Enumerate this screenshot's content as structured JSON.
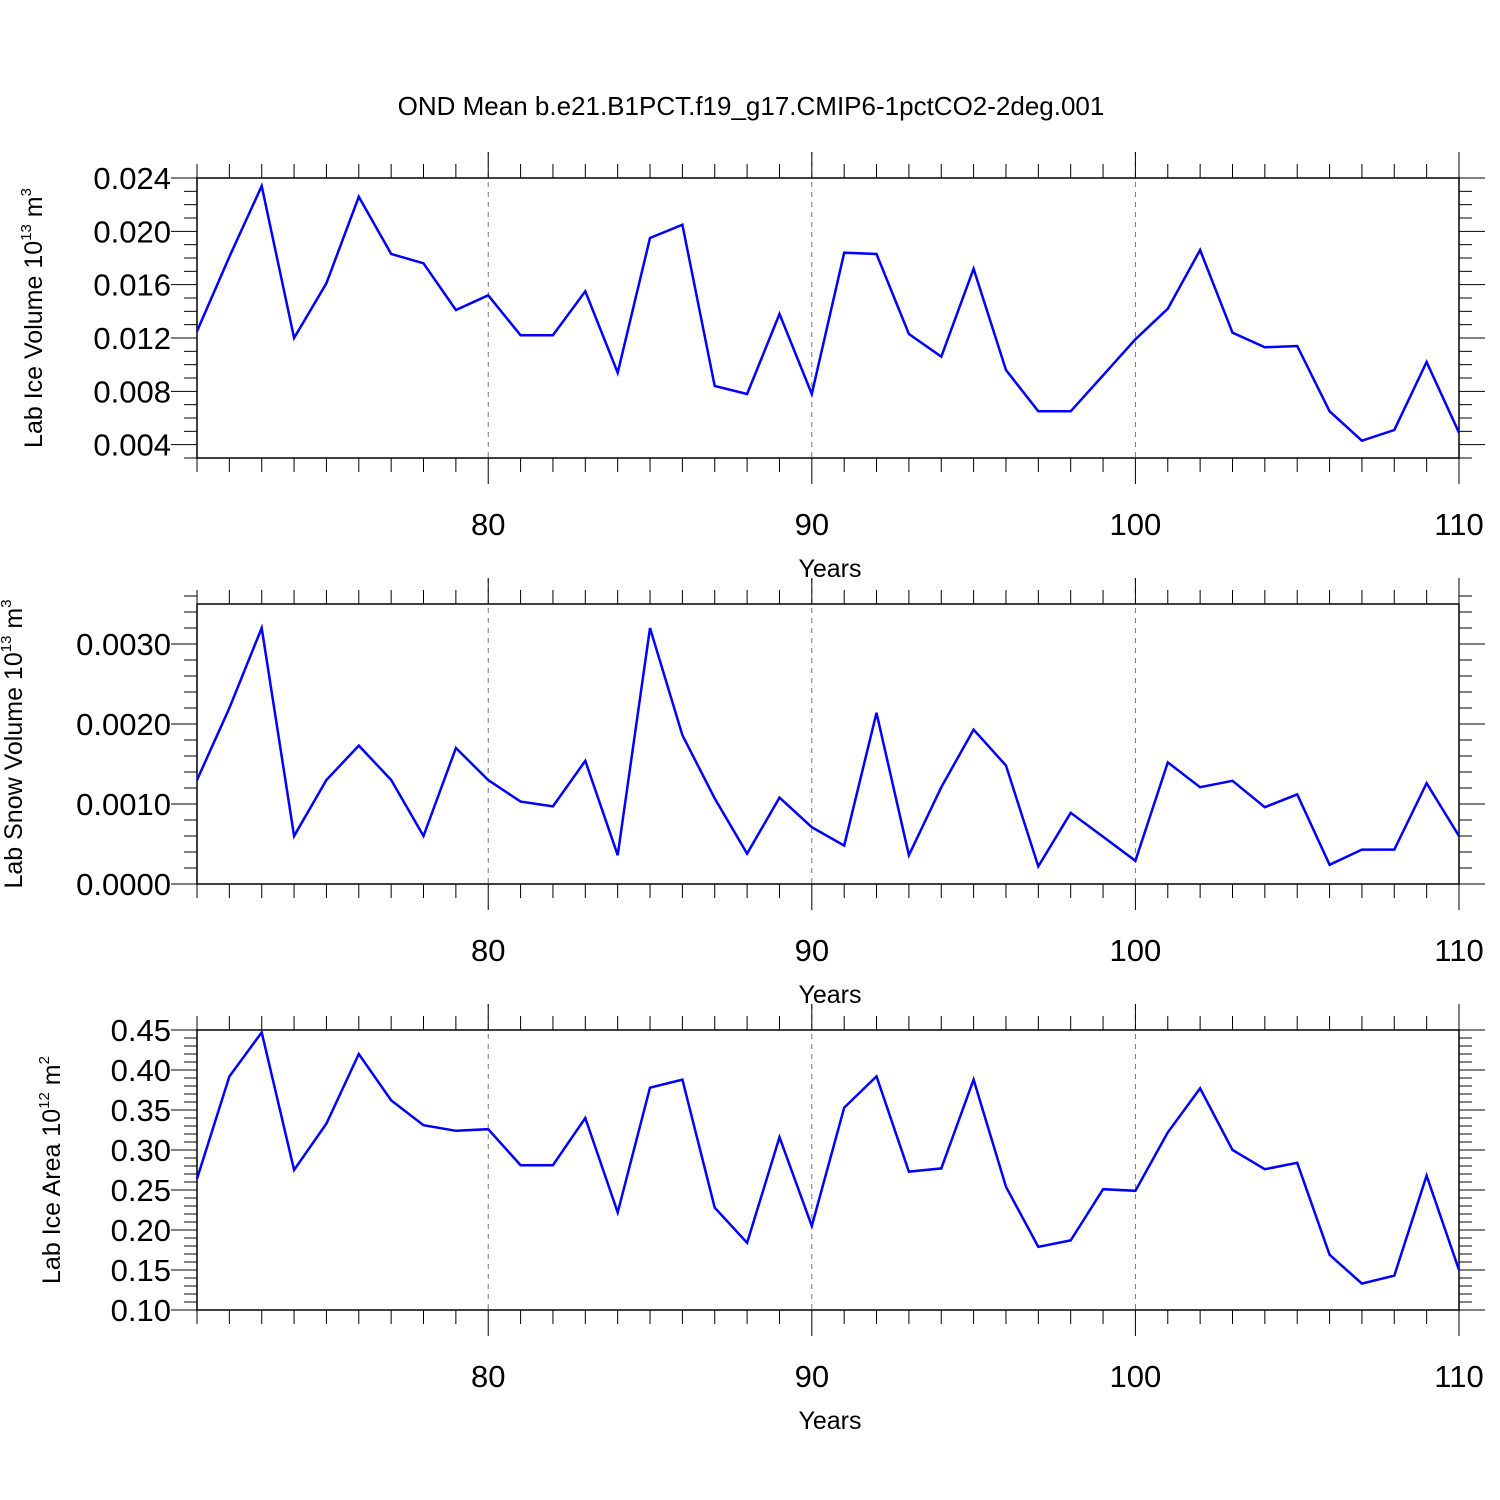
{
  "title": "OND Mean b.e21.B1PCT.f19_g17.CMIP6-1pctCO2-2deg.001",
  "chart_data": [
    {
      "type": "line",
      "title": "",
      "xlabel": "Years",
      "ylabel": {
        "base": "Lab Ice Volume 10",
        "exp": "13",
        "unit": " m",
        "unit_exp": "3"
      },
      "xlim": [
        71,
        110
      ],
      "ylim": [
        0.003,
        0.024
      ],
      "xticks": [
        80,
        90,
        100,
        110
      ],
      "xtick_labels": [
        "80",
        "90",
        "100",
        "110"
      ],
      "yticks": [
        0.004,
        0.008,
        0.012,
        0.016,
        0.02,
        0.024
      ],
      "ytick_labels": [
        "0.004",
        "0.008",
        "0.012",
        "0.016",
        "0.020",
        "0.024"
      ],
      "yminor_step": 0.001,
      "xgrid_dashed": [
        80,
        90,
        100
      ],
      "x": [
        71,
        72,
        73,
        74,
        75,
        76,
        77,
        78,
        79,
        80,
        81,
        82,
        83,
        84,
        85,
        86,
        87,
        88,
        89,
        90,
        91,
        92,
        93,
        94,
        95,
        96,
        97,
        98,
        99,
        100,
        101,
        102,
        103,
        104,
        105,
        106,
        107,
        108,
        109,
        110
      ],
      "series": [
        {
          "color": "#0000ff",
          "values": [
            0.0125,
            0.0181,
            0.0234,
            0.012,
            0.0161,
            0.0226,
            0.0183,
            0.0176,
            0.0141,
            0.0152,
            0.0122,
            0.0122,
            0.0155,
            0.0094,
            0.0195,
            0.0205,
            0.0084,
            0.0078,
            0.0138,
            0.0078,
            0.0184,
            0.0183,
            0.0123,
            0.0106,
            0.0172,
            0.0096,
            0.0065,
            0.0065,
            0.0092,
            0.0119,
            0.0142,
            0.0186,
            0.0124,
            0.0113,
            0.0114,
            0.0065,
            0.0043,
            0.0051,
            0.0102,
            0.0049
          ]
        }
      ]
    },
    {
      "type": "line",
      "title": "",
      "xlabel": "Years",
      "ylabel": {
        "base": "Lab Snow Volume 10",
        "exp": "13",
        "unit": " m",
        "unit_exp": "3"
      },
      "xlim": [
        71,
        110
      ],
      "ylim": [
        0.0,
        0.0035
      ],
      "xticks": [
        80,
        90,
        100,
        110
      ],
      "xtick_labels": [
        "80",
        "90",
        "100",
        "110"
      ],
      "yticks": [
        0.0,
        0.001,
        0.002,
        0.003
      ],
      "ytick_labels": [
        "0.0000",
        "0.0010",
        "0.0020",
        "0.0030"
      ],
      "yminor_step": 0.0002,
      "xgrid_dashed": [
        80,
        90,
        100
      ],
      "x": [
        71,
        72,
        73,
        74,
        75,
        76,
        77,
        78,
        79,
        80,
        81,
        82,
        83,
        84,
        85,
        86,
        87,
        88,
        89,
        90,
        91,
        92,
        93,
        94,
        95,
        96,
        97,
        98,
        99,
        100,
        101,
        102,
        103,
        104,
        105,
        106,
        107,
        108,
        109,
        110
      ],
      "series": [
        {
          "color": "#0000ff",
          "values": [
            0.0013,
            0.0022,
            0.0032,
            0.0006,
            0.0013,
            0.00173,
            0.0013,
            0.0006,
            0.0017,
            0.0013,
            0.00103,
            0.00097,
            0.00154,
            0.00036,
            0.0032,
            0.00186,
            0.00107,
            0.00038,
            0.00108,
            0.00071,
            0.00048,
            0.00214,
            0.00036,
            0.00121,
            0.00193,
            0.00148,
            0.00022,
            0.00089,
            0.00059,
            0.00029,
            0.00152,
            0.00121,
            0.00129,
            0.00096,
            0.00112,
            0.00024,
            0.00043,
            0.00043,
            0.00126,
            0.0006
          ]
        }
      ]
    },
    {
      "type": "line",
      "title": "",
      "xlabel": "Years",
      "ylabel": {
        "base": "Lab Ice Area 10",
        "exp": "12",
        "unit": " m",
        "unit_exp": "2"
      },
      "xlim": [
        71,
        110
      ],
      "ylim": [
        0.1,
        0.45
      ],
      "xticks": [
        80,
        90,
        100,
        110
      ],
      "xtick_labels": [
        "80",
        "90",
        "100",
        "110"
      ],
      "yticks": [
        0.1,
        0.15,
        0.2,
        0.25,
        0.3,
        0.35,
        0.4,
        0.45
      ],
      "ytick_labels": [
        "0.10",
        "0.15",
        "0.20",
        "0.25",
        "0.30",
        "0.35",
        "0.40",
        "0.45"
      ],
      "yminor_step": 0.01,
      "xgrid_dashed": [
        80,
        90,
        100
      ],
      "x": [
        71,
        72,
        73,
        74,
        75,
        76,
        77,
        78,
        79,
        80,
        81,
        82,
        83,
        84,
        85,
        86,
        87,
        88,
        89,
        90,
        91,
        92,
        93,
        94,
        95,
        96,
        97,
        98,
        99,
        100,
        101,
        102,
        103,
        104,
        105,
        106,
        107,
        108,
        109,
        110
      ],
      "series": [
        {
          "color": "#0000ff",
          "values": [
            0.264,
            0.392,
            0.447,
            0.275,
            0.333,
            0.42,
            0.362,
            0.331,
            0.324,
            0.326,
            0.281,
            0.281,
            0.34,
            0.222,
            0.378,
            0.388,
            0.228,
            0.184,
            0.316,
            0.205,
            0.353,
            0.392,
            0.273,
            0.277,
            0.388,
            0.254,
            0.179,
            0.187,
            0.251,
            0.249,
            0.322,
            0.377,
            0.3,
            0.276,
            0.284,
            0.169,
            0.133,
            0.143,
            0.268,
            0.15
          ]
        }
      ]
    }
  ]
}
